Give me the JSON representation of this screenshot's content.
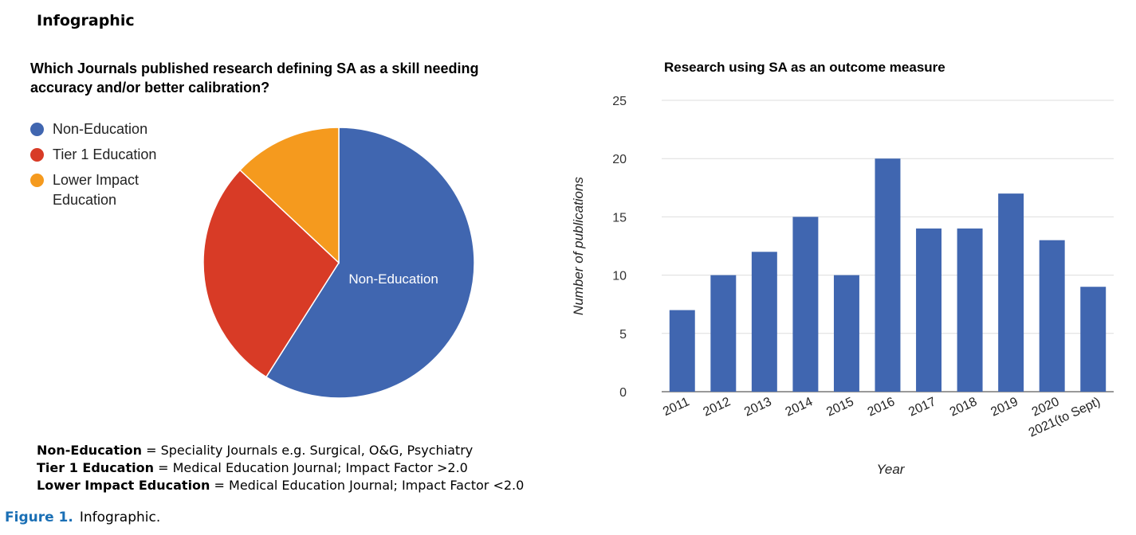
{
  "header": {
    "title": "Infographic"
  },
  "pie": {
    "title": "Which Journals published research defining SA as a skill needing accuracy and/or better calibration?",
    "slice_label": "Non-Education"
  },
  "definitions": [
    {
      "term": "Non-Education",
      "text": " = Speciality Journals e.g. Surgical, O&G, Psychiatry"
    },
    {
      "term": "Tier 1 Education",
      "text": " = Medical Education Journal; Impact Factor >2.0"
    },
    {
      "term": "Lower Impact Education",
      "text": " = Medical Education Journal; Impact Factor <2.0"
    }
  ],
  "caption": {
    "figure": "Figure 1.",
    "text": "Infographic."
  },
  "chart_data": [
    {
      "type": "pie",
      "title": "Which Journals published research defining SA as a skill needing accuracy and/or better calibration?",
      "legend_position": "top-left",
      "slices": [
        {
          "label": "Non-Education",
          "value": 59,
          "color": "#4066b0"
        },
        {
          "label": "Tier 1 Education",
          "value": 28,
          "color": "#d83b26"
        },
        {
          "label": "Lower Impact Education",
          "value": 13,
          "color": "#f59a1e"
        }
      ]
    },
    {
      "type": "bar",
      "title": "Research using SA as an outcome measure",
      "xlabel": "Year",
      "ylabel": "Number of publications",
      "categories": [
        "2011",
        "2012",
        "2013",
        "2014",
        "2015",
        "2016",
        "2017",
        "2018",
        "2019",
        "2020",
        "2021(to Sept)"
      ],
      "values": [
        7,
        10,
        12,
        15,
        10,
        20,
        14,
        14,
        17,
        13,
        9
      ],
      "ylim": [
        0,
        25
      ],
      "yticks": [
        0,
        5,
        10,
        15,
        20,
        25
      ],
      "grid": true,
      "color": "#4066b0"
    }
  ]
}
